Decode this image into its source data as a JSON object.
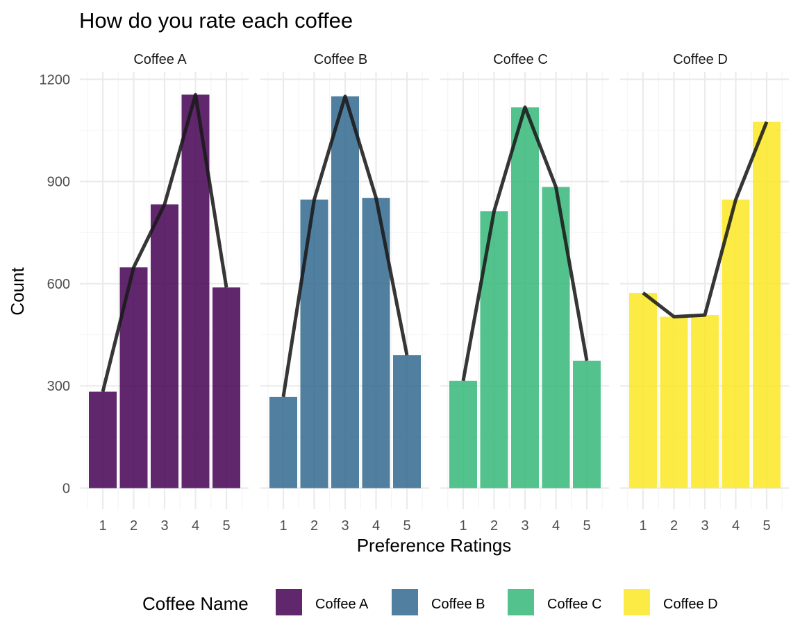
{
  "chart_data": {
    "type": "bar",
    "title": "How do you rate each coffee",
    "xlabel": "Preference Ratings",
    "ylabel": "Count",
    "ylim": [
      -60,
      1230
    ],
    "y_ticks": [
      "0",
      "300",
      "600",
      "900",
      "1200"
    ],
    "y_tick_values": [
      0,
      300,
      600,
      900,
      1200
    ],
    "categories": [
      "1",
      "2",
      "3",
      "4",
      "5"
    ],
    "grid": true,
    "legend": {
      "title": "Coffee Name",
      "position": "bottom"
    },
    "facets": [
      {
        "name": "Coffee A",
        "color": "#440154",
        "values": [
          283,
          648,
          833,
          1155,
          589
        ]
      },
      {
        "name": "Coffee B",
        "color": "#31688E",
        "values": [
          268,
          847,
          1150,
          852,
          390
        ]
      },
      {
        "name": "Coffee C",
        "color": "#35B779",
        "values": [
          315,
          813,
          1118,
          884,
          374
        ]
      },
      {
        "name": "Coffee D",
        "color": "#FDE725",
        "values": [
          573,
          503,
          508,
          847,
          1075
        ]
      }
    ],
    "trend_line_color": "#1a1a1a"
  }
}
